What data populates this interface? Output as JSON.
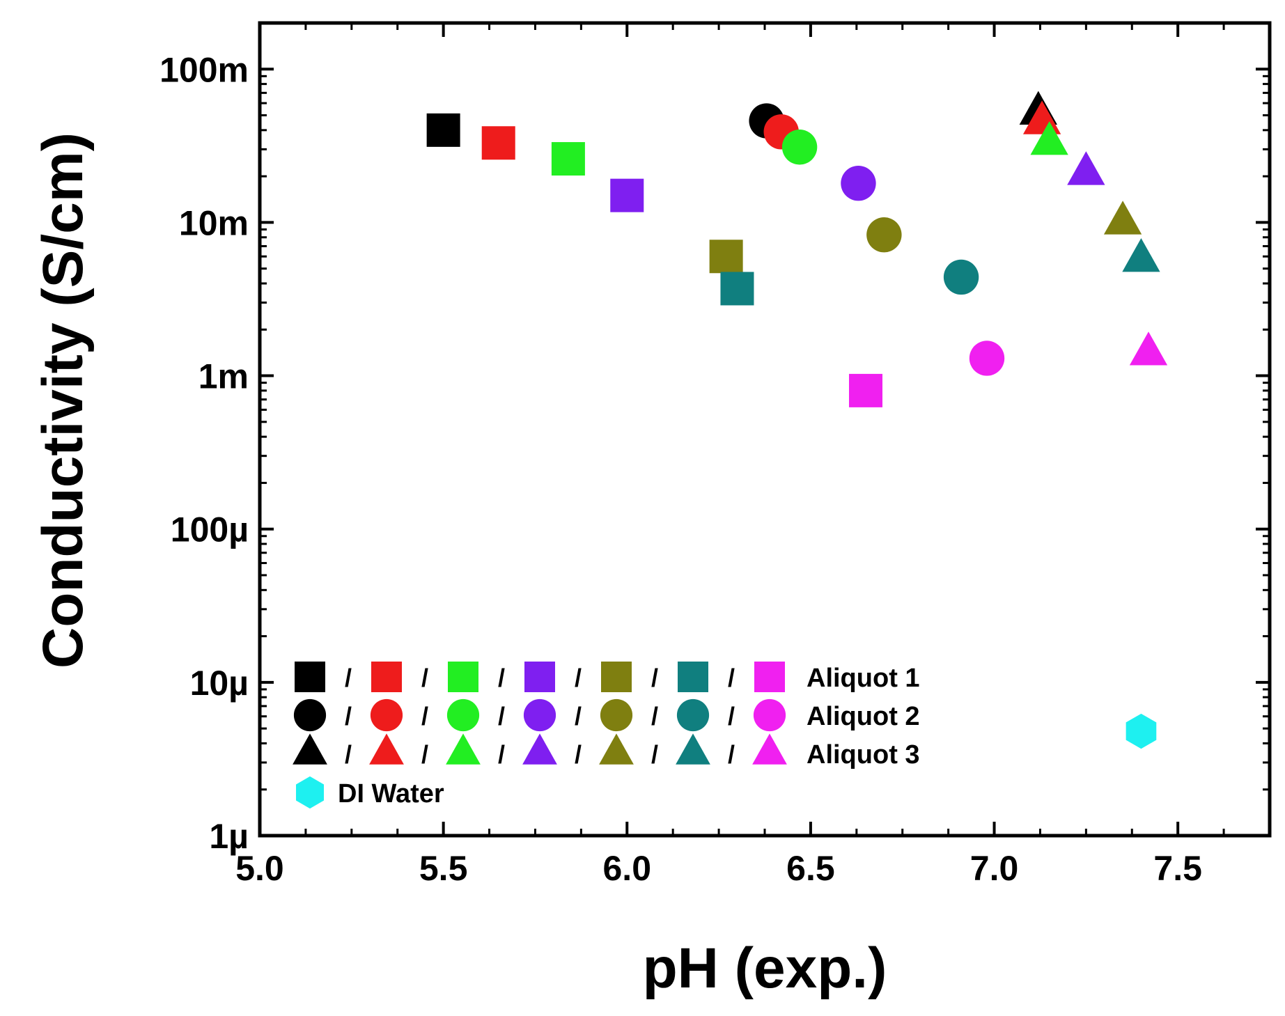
{
  "chart_data": {
    "type": "scatter",
    "xlabel": "pH (exp.)",
    "ylabel": "Conductivity (S/cm)",
    "xscale": "linear",
    "yscale": "log",
    "xlim": [
      5.0,
      7.75
    ],
    "ylim": [
      1e-06,
      0.2
    ],
    "x_ticks": [
      {
        "value": 5.0,
        "label": "5.0"
      },
      {
        "value": 5.5,
        "label": "5.5"
      },
      {
        "value": 6.0,
        "label": "6.0"
      },
      {
        "value": 6.5,
        "label": "6.5"
      },
      {
        "value": 7.0,
        "label": "7.0"
      },
      {
        "value": 7.5,
        "label": "7.5"
      }
    ],
    "y_ticks": [
      {
        "value": 1e-06,
        "label": "1µ"
      },
      {
        "value": 1e-05,
        "label": "10µ"
      },
      {
        "value": 0.0001,
        "label": "100µ"
      },
      {
        "value": 0.001,
        "label": "1m"
      },
      {
        "value": 0.01,
        "label": "10m"
      },
      {
        "value": 0.1,
        "label": "100m"
      }
    ],
    "palette": [
      "#000000",
      "#ee1c1c",
      "#22ee22",
      "#7f1ff0",
      "#7f7f10",
      "#107f7f",
      "#f020f0"
    ],
    "series": [
      {
        "name": "Aliquot 1",
        "marker": "square",
        "points": [
          {
            "x": 5.5,
            "y": 0.04,
            "color": "#000000"
          },
          {
            "x": 5.65,
            "y": 0.033,
            "color": "#ee1c1c"
          },
          {
            "x": 5.84,
            "y": 0.026,
            "color": "#22ee22"
          },
          {
            "x": 6.0,
            "y": 0.015,
            "color": "#7f1ff0"
          },
          {
            "x": 6.27,
            "y": 0.006,
            "color": "#7f7f10"
          },
          {
            "x": 6.3,
            "y": 0.0037,
            "color": "#107f7f"
          },
          {
            "x": 6.65,
            "y": 0.0008,
            "color": "#f020f0"
          }
        ]
      },
      {
        "name": "Aliquot 2",
        "marker": "circle",
        "points": [
          {
            "x": 6.38,
            "y": 0.046,
            "color": "#000000"
          },
          {
            "x": 6.42,
            "y": 0.039,
            "color": "#ee1c1c"
          },
          {
            "x": 6.47,
            "y": 0.031,
            "color": "#22ee22"
          },
          {
            "x": 6.63,
            "y": 0.018,
            "color": "#7f1ff0"
          },
          {
            "x": 6.7,
            "y": 0.0083,
            "color": "#7f7f10"
          },
          {
            "x": 6.91,
            "y": 0.0044,
            "color": "#107f7f"
          },
          {
            "x": 6.98,
            "y": 0.0013,
            "color": "#f020f0"
          }
        ]
      },
      {
        "name": "Aliquot 3",
        "marker": "triangle",
        "points": [
          {
            "x": 7.12,
            "y": 0.052,
            "color": "#000000"
          },
          {
            "x": 7.13,
            "y": 0.045,
            "color": "#ee1c1c"
          },
          {
            "x": 7.15,
            "y": 0.033,
            "color": "#22ee22"
          },
          {
            "x": 7.25,
            "y": 0.021,
            "color": "#7f1ff0"
          },
          {
            "x": 7.35,
            "y": 0.01,
            "color": "#7f7f10"
          },
          {
            "x": 7.4,
            "y": 0.0057,
            "color": "#107f7f"
          },
          {
            "x": 7.42,
            "y": 0.0014,
            "color": "#f020f0"
          }
        ]
      },
      {
        "name": "DI Water",
        "marker": "hexagon",
        "points": [
          {
            "x": 7.4,
            "y": 4.8e-06,
            "color": "#1ef0f0"
          }
        ]
      }
    ],
    "legend": {
      "placement": "lower-left",
      "separator": "/",
      "rows": [
        {
          "label": "Aliquot 1",
          "marker": "square"
        },
        {
          "label": "Aliquot 2",
          "marker": "circle"
        },
        {
          "label": "Aliquot 3",
          "marker": "triangle"
        },
        {
          "label": "DI Water",
          "marker": "hexagon",
          "color": "#1ef0f0"
        }
      ]
    }
  }
}
